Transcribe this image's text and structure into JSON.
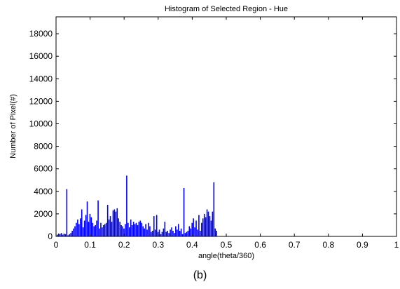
{
  "figure_label": "(b)",
  "chart_data": {
    "type": "bar",
    "title": "Histogram of Selected Region - Hue",
    "xlabel": "angle(theta/360)",
    "ylabel": "Number of Pixel(#)",
    "xlim": [
      0,
      1
    ],
    "ylim": [
      0,
      19500
    ],
    "xticks": [
      0,
      0.1,
      0.2,
      0.3,
      0.4,
      0.5,
      0.6,
      0.7,
      0.8,
      0.9,
      1
    ],
    "xtick_labels": [
      "0",
      "0.1",
      "0.2",
      "0.3",
      "0.4",
      "0.5",
      "0.6",
      "0.7",
      "0.8",
      "0.9",
      "1"
    ],
    "yticks": [
      0,
      2000,
      4000,
      6000,
      8000,
      10000,
      12000,
      14000,
      16000,
      18000
    ],
    "ytick_labels": [
      "0",
      "2000",
      "4000",
      "6000",
      "8000",
      "10000",
      "12000",
      "14000",
      "16000",
      "18000"
    ],
    "grid": false,
    "bar_color": "#0000ff",
    "x": [
      0.004,
      0.008,
      0.012,
      0.016,
      0.02,
      0.024,
      0.028,
      0.032,
      0.036,
      0.04,
      0.044,
      0.048,
      0.052,
      0.056,
      0.06,
      0.064,
      0.068,
      0.072,
      0.076,
      0.08,
      0.084,
      0.088,
      0.092,
      0.096,
      0.1,
      0.104,
      0.108,
      0.112,
      0.116,
      0.12,
      0.124,
      0.128,
      0.132,
      0.136,
      0.14,
      0.144,
      0.148,
      0.152,
      0.156,
      0.16,
      0.164,
      0.168,
      0.172,
      0.176,
      0.18,
      0.184,
      0.188,
      0.192,
      0.196,
      0.2,
      0.204,
      0.208,
      0.212,
      0.216,
      0.22,
      0.224,
      0.228,
      0.232,
      0.236,
      0.24,
      0.244,
      0.248,
      0.252,
      0.256,
      0.26,
      0.264,
      0.268,
      0.272,
      0.276,
      0.28,
      0.284,
      0.288,
      0.292,
      0.296,
      0.3,
      0.304,
      0.308,
      0.312,
      0.316,
      0.32,
      0.324,
      0.328,
      0.332,
      0.336,
      0.34,
      0.344,
      0.348,
      0.352,
      0.356,
      0.36,
      0.364,
      0.368,
      0.372,
      0.376,
      0.38,
      0.384,
      0.388,
      0.392,
      0.396,
      0.4,
      0.404,
      0.408,
      0.412,
      0.416,
      0.42,
      0.424,
      0.428,
      0.432,
      0.436,
      0.44,
      0.444,
      0.448,
      0.452,
      0.456,
      0.46,
      0.464,
      0.468,
      0.472
    ],
    "values": [
      150,
      250,
      200,
      300,
      150,
      250,
      200,
      4200,
      100,
      200,
      300,
      500,
      700,
      900,
      1200,
      1500,
      1100,
      1600,
      2400,
      800,
      1400,
      1900,
      3100,
      1300,
      2000,
      1700,
      1200,
      900,
      1000,
      1400,
      3200,
      700,
      1200,
      800,
      1000,
      1100,
      1200,
      2800,
      1500,
      1800,
      1300,
      2300,
      2400,
      2200,
      2500,
      1600,
      1300,
      1000,
      900,
      700,
      1100,
      5400,
      1200,
      800,
      1500,
      1000,
      1300,
      1100,
      1200,
      1000,
      1300,
      1400,
      1200,
      900,
      700,
      1100,
      600,
      1200,
      900,
      400,
      500,
      1800,
      600,
      1900,
      400,
      600,
      200,
      400,
      700,
      1300,
      400,
      500,
      300,
      600,
      800,
      500,
      300,
      900,
      600,
      1100,
      500,
      700,
      200,
      4300,
      300,
      400,
      500,
      900,
      700,
      1200,
      1600,
      800,
      1400,
      600,
      1900,
      500,
      1200,
      1600,
      2000,
      1700,
      2400,
      2200,
      1800,
      1400,
      2200,
      4800,
      700,
      500
    ]
  }
}
